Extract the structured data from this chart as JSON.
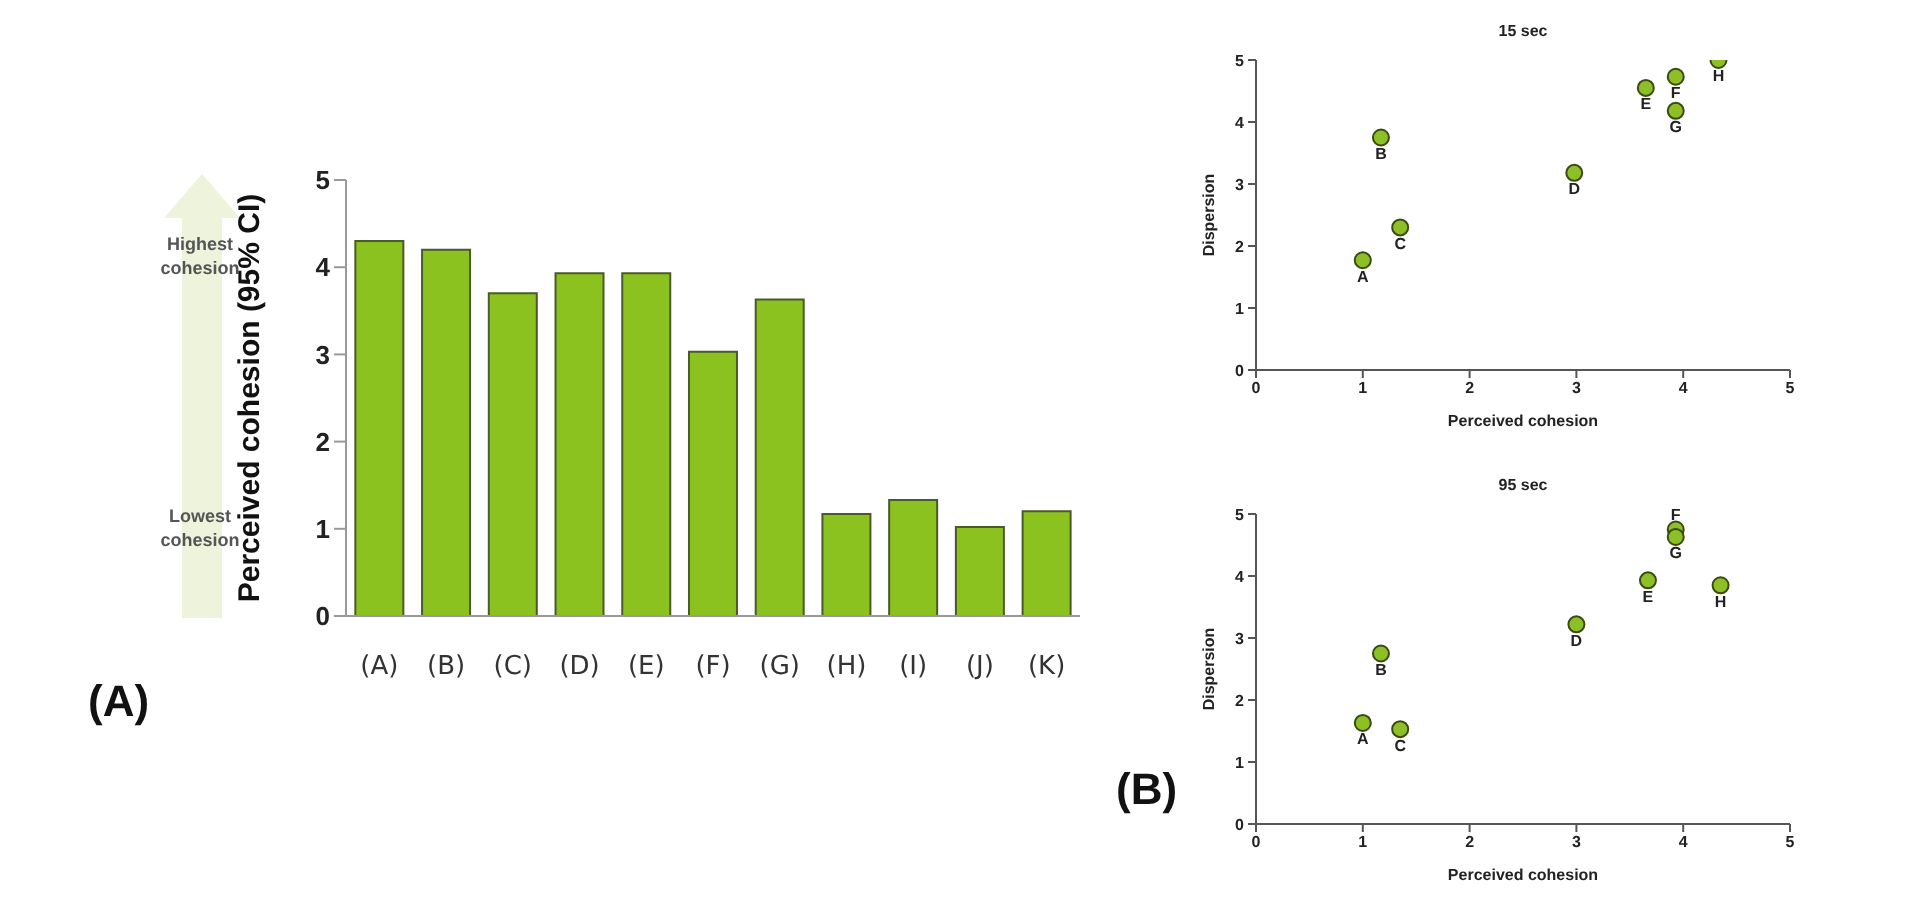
{
  "chart_data": [
    {
      "type": "bar",
      "ylabel": "Perceived cohesion (95% CI)",
      "categories": [
        "(A)",
        "(B)",
        "(C)",
        "(D)",
        "(E)",
        "(F)",
        "(G)",
        "(H)",
        "(I)",
        "(J)",
        "(K)"
      ],
      "values": [
        4.3,
        4.2,
        3.7,
        3.93,
        3.93,
        3.03,
        3.63,
        1.17,
        1.33,
        1.02,
        1.2
      ],
      "color": "#8cc21f",
      "ylim": [
        0,
        5
      ],
      "yticks": [
        0,
        1,
        2,
        3,
        4,
        5
      ],
      "annotations": [
        "(A)",
        "Highest cohesion",
        "Lowest cohesion"
      ]
    },
    {
      "type": "scatter",
      "title": "15 sec",
      "xlabel": "Perceived cohesion",
      "ylabel": "Dispersion",
      "x": [
        1.0,
        1.17,
        1.35,
        2.98,
        3.65,
        3.93,
        3.93,
        4.33
      ],
      "values": [
        1.77,
        3.75,
        2.3,
        3.18,
        4.55,
        4.73,
        4.18,
        5.0
      ],
      "color": "#8dc026",
      "marker": "circle",
      "xlim": [
        0,
        5
      ],
      "xticks": [
        0,
        1,
        2,
        3,
        4,
        5
      ],
      "ylim": [
        0,
        5
      ],
      "yticks": [
        0,
        1,
        2,
        3,
        4,
        5
      ],
      "annotations": [
        {
          "text": "A",
          "x": 1.0,
          "y": 1.77
        },
        {
          "text": "B",
          "x": 1.17,
          "y": 3.75
        },
        {
          "text": "C",
          "x": 1.35,
          "y": 2.3
        },
        {
          "text": "D",
          "x": 2.98,
          "y": 3.18
        },
        {
          "text": "E",
          "x": 3.65,
          "y": 4.55
        },
        {
          "text": "F",
          "x": 3.93,
          "y": 4.73
        },
        {
          "text": "G",
          "x": 3.93,
          "y": 4.18
        },
        {
          "text": "H",
          "x": 4.33,
          "y": 5.0
        }
      ]
    },
    {
      "type": "scatter",
      "title": "95 sec",
      "xlabel": "Perceived cohesion",
      "ylabel": "Dispersion",
      "x": [
        1.0,
        1.17,
        1.35,
        3.0,
        3.67,
        3.93,
        3.93,
        4.35
      ],
      "values": [
        1.63,
        2.75,
        1.53,
        3.22,
        3.93,
        4.75,
        4.63,
        3.85
      ],
      "color": "#8dc026",
      "marker": "circle",
      "xlim": [
        0,
        5
      ],
      "xticks": [
        0,
        1,
        2,
        3,
        4,
        5
      ],
      "ylim": [
        0,
        5
      ],
      "yticks": [
        0,
        1,
        2,
        3,
        4,
        5
      ],
      "annotations": [
        {
          "text": "A",
          "x": 1.0,
          "y": 1.63
        },
        {
          "text": "B",
          "x": 1.17,
          "y": 2.75
        },
        {
          "text": "C",
          "x": 1.35,
          "y": 1.53
        },
        {
          "text": "D",
          "x": 3.0,
          "y": 3.22
        },
        {
          "text": "E",
          "x": 3.67,
          "y": 3.93
        },
        {
          "text": "F",
          "x": 3.93,
          "y": 4.75
        },
        {
          "text": "G",
          "x": 3.93,
          "y": 4.63
        },
        {
          "text": "H",
          "x": 4.35,
          "y": 3.85
        },
        "(B)"
      ]
    }
  ]
}
